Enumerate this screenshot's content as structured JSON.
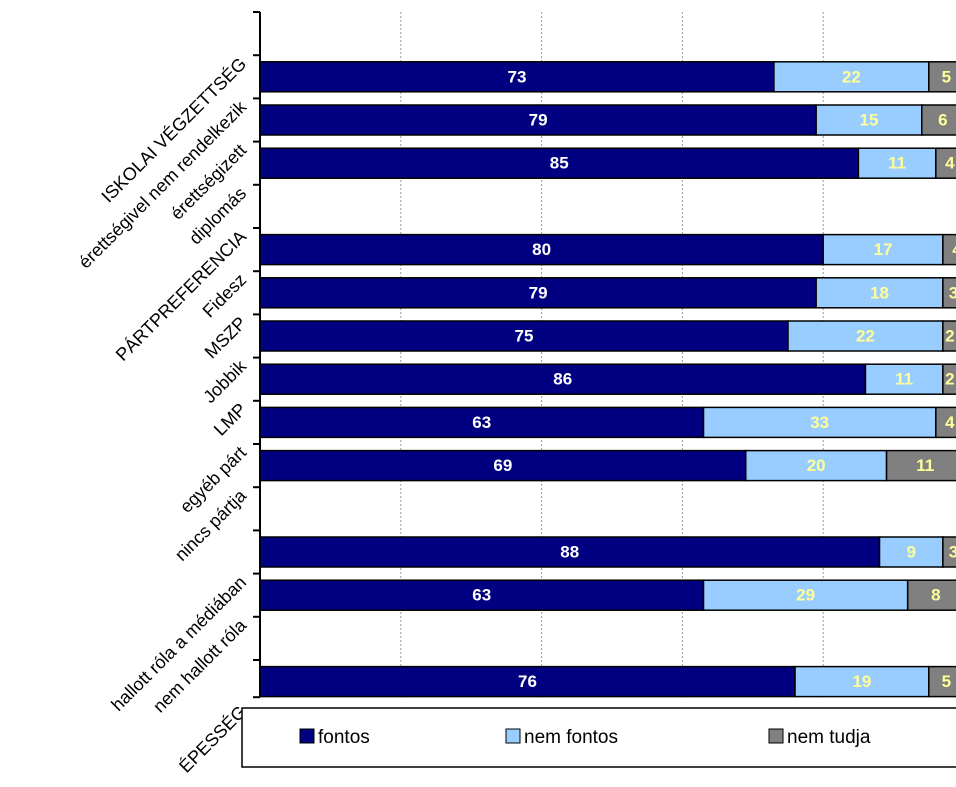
{
  "chart_data": {
    "type": "stacked-barh",
    "categories": [
      "ISKOLAI VÉGZETTSÉG",
      "érettségivel nem rendelkezik",
      "érettségizett",
      "diplomás",
      "PÁRTPREFERENCIA",
      "Fidesz",
      "MSZP",
      "Jobbik",
      "LMP",
      "egyéb párt",
      "nincs pártja",
      null,
      "hallott róla a médiában",
      "nem hallott róla",
      null,
      "ÉPESSÉG"
    ],
    "series": [
      {
        "name": "fontos",
        "color": "#000080",
        "label_color": "#ffffff",
        "values": [
          null,
          73,
          79,
          85,
          null,
          80,
          79,
          75,
          86,
          63,
          69,
          null,
          88,
          63,
          null,
          76
        ]
      },
      {
        "name": "nem fontos",
        "color": "#99ccff",
        "label_color": "#ffff99",
        "values": [
          null,
          22,
          15,
          11,
          null,
          17,
          18,
          22,
          11,
          33,
          20,
          null,
          9,
          29,
          null,
          19
        ]
      },
      {
        "name": "nem tudja",
        "color": "#808080",
        "label_color": "#ffff99",
        "values": [
          null,
          5,
          6,
          4,
          null,
          4,
          3,
          2,
          2,
          4,
          11,
          null,
          3,
          8,
          null,
          5
        ]
      }
    ],
    "xlim": [
      0,
      100
    ],
    "xticks": [
      0,
      20,
      40,
      60,
      80,
      100
    ],
    "grid": true,
    "legend": "bottom"
  }
}
